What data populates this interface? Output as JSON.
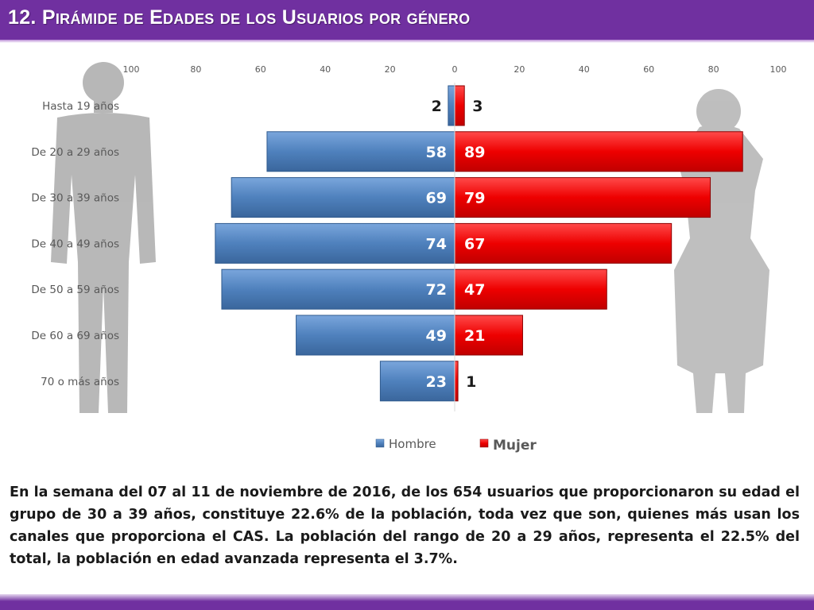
{
  "slide": {
    "title": "12. Pirámide de Edades de los Usuarios por género",
    "description": "En la semana del 07 al 11 de noviembre de 2016, de los 654 usuarios  que proporcionaron su edad el grupo de 30 a 39 años,  constituye 22.6% de la población, toda vez que son, quienes más usan los canales que proporciona el CAS. La población del rango de 20 a 29 años, representa el 22.5% del total, la población en edad avanzada representa el 3.7%."
  },
  "colors": {
    "accent": "#7030a0",
    "hombre": "#4f81bd",
    "mujer": "#ff0000"
  },
  "chart_data": {
    "type": "bar",
    "orientation": "horizontal-pyramid",
    "categories": [
      "Hasta 19 años",
      "De 20 a 29 años",
      "De 30 a 39 años",
      "De 40 a 49 años",
      "De 50 a 59 años",
      "De 60 a 69 años",
      "70 o más años"
    ],
    "series": [
      {
        "name": "Hombre",
        "values": [
          2,
          58,
          69,
          74,
          72,
          49,
          23
        ]
      },
      {
        "name": "Mujer",
        "values": [
          3,
          89,
          79,
          67,
          47,
          21,
          1
        ]
      }
    ],
    "xticks": [
      "100",
      "80",
      "60",
      "40",
      "20",
      "0",
      "20",
      "40",
      "60",
      "80",
      "100"
    ],
    "xlim": [
      -100,
      100
    ],
    "grid": false,
    "legend": "bottom",
    "title": "",
    "xlabel": "",
    "ylabel": ""
  }
}
